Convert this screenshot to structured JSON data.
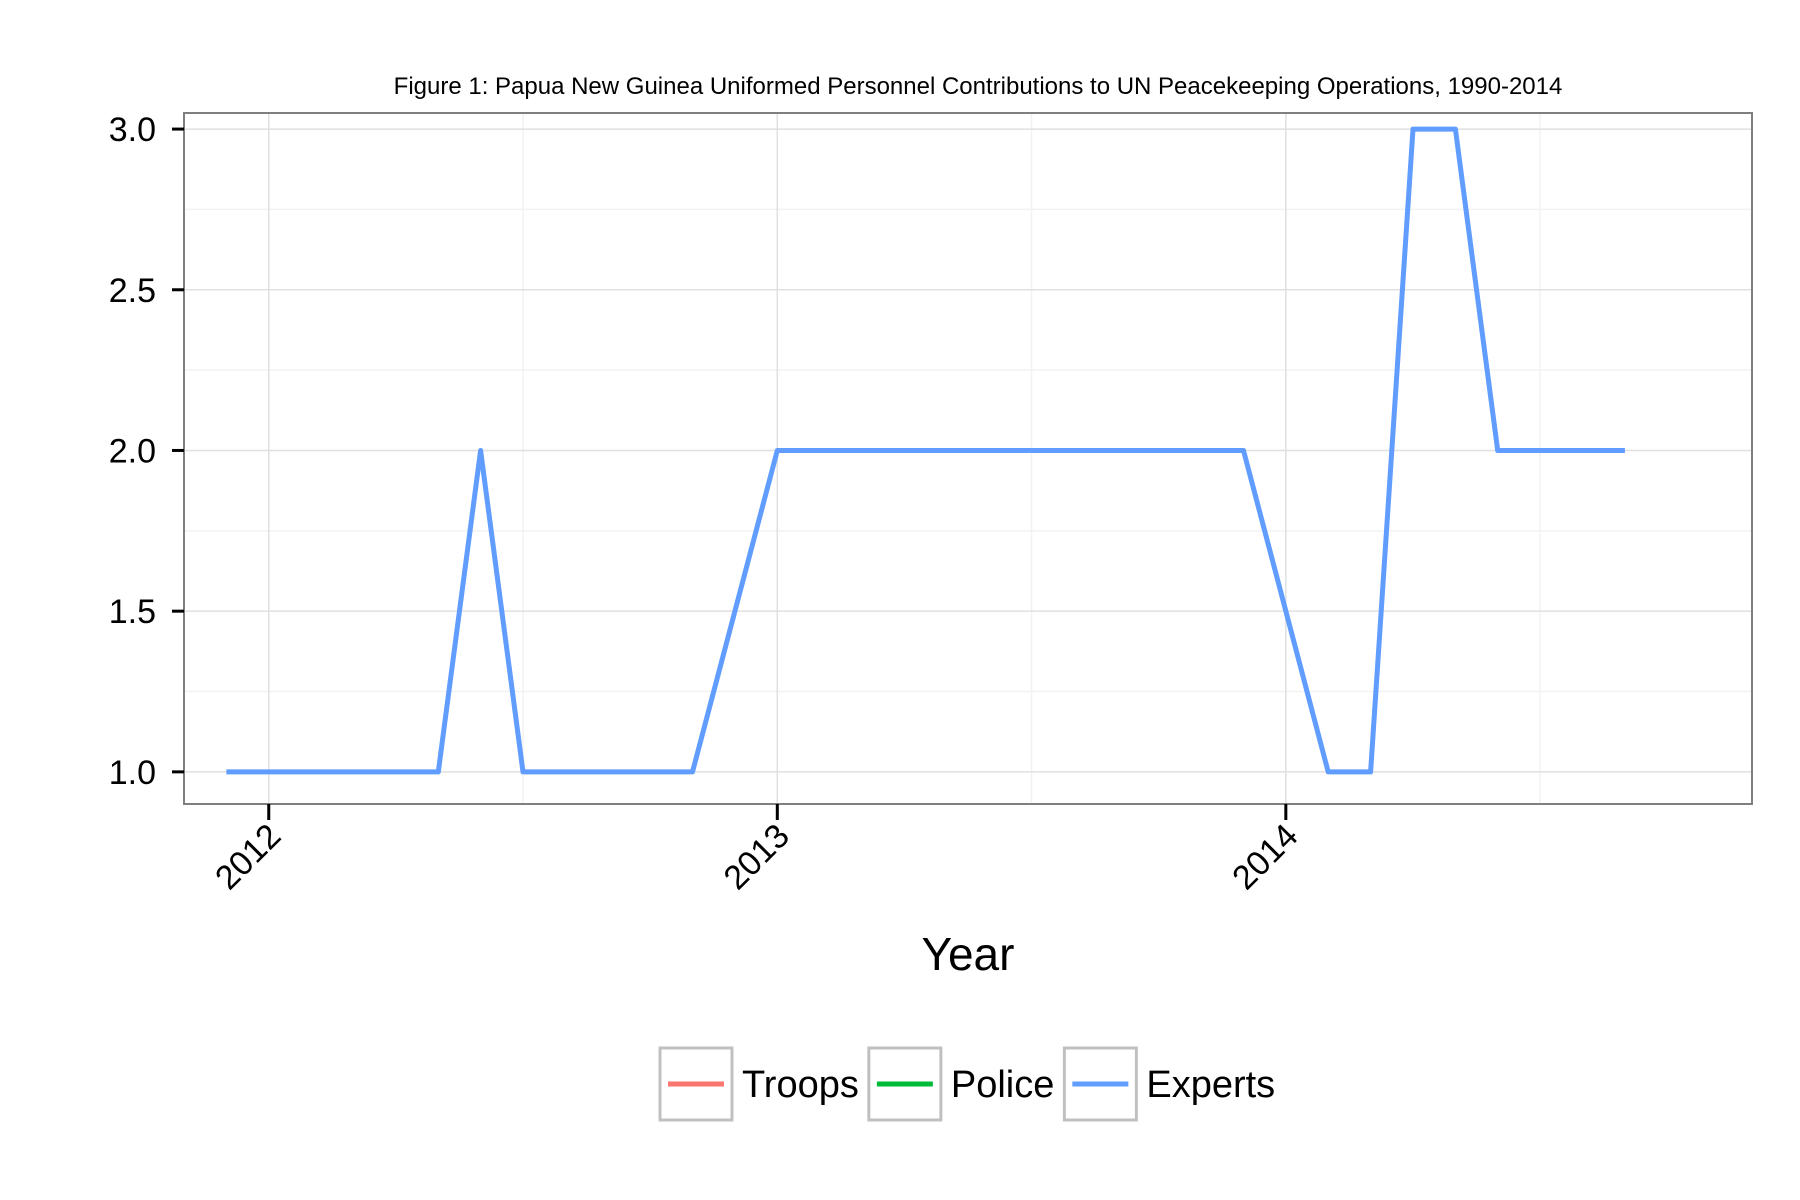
{
  "chart_data": {
    "type": "line",
    "title": "Figure 1: Papua New Guinea Uniformed Personnel Contributions to UN Peacekeeping Operations, 1990-2014",
    "xlabel": "Year",
    "ylabel": "",
    "xlim": [
      "2011-11-01",
      "2014-12-01"
    ],
    "ylim": [
      0.9,
      3.05
    ],
    "x_ticks": [
      "2012",
      "2013",
      "2014"
    ],
    "y_ticks": [
      "1.0",
      "1.5",
      "2.0",
      "2.5",
      "3.0"
    ],
    "grid": true,
    "legend_position": "bottom",
    "series": [
      {
        "name": "Troops",
        "color": "#F8766D",
        "points": []
      },
      {
        "name": "Police",
        "color": "#00BA38",
        "points": []
      },
      {
        "name": "Experts",
        "color": "#619CFF",
        "points": [
          {
            "x": "2011-12",
            "y": 1
          },
          {
            "x": "2012-01",
            "y": 1
          },
          {
            "x": "2012-02",
            "y": 1
          },
          {
            "x": "2012-03",
            "y": 1
          },
          {
            "x": "2012-04",
            "y": 1
          },
          {
            "x": "2012-05",
            "y": 1
          },
          {
            "x": "2012-06",
            "y": 2
          },
          {
            "x": "2012-07",
            "y": 1
          },
          {
            "x": "2012-08",
            "y": 1
          },
          {
            "x": "2012-09",
            "y": 1
          },
          {
            "x": "2012-10",
            "y": 1
          },
          {
            "x": "2012-11",
            "y": 1
          },
          {
            "x": "2013-01",
            "y": 2
          },
          {
            "x": "2013-02",
            "y": 2
          },
          {
            "x": "2013-03",
            "y": 2
          },
          {
            "x": "2013-04",
            "y": 2
          },
          {
            "x": "2013-05",
            "y": 2
          },
          {
            "x": "2013-06",
            "y": 2
          },
          {
            "x": "2013-07",
            "y": 2
          },
          {
            "x": "2013-08",
            "y": 2
          },
          {
            "x": "2013-09",
            "y": 2
          },
          {
            "x": "2013-10",
            "y": 2
          },
          {
            "x": "2013-11",
            "y": 2
          },
          {
            "x": "2013-12",
            "y": 2
          },
          {
            "x": "2014-02",
            "y": 1
          },
          {
            "x": "2014-03",
            "y": 1
          },
          {
            "x": "2014-04",
            "y": 3
          },
          {
            "x": "2014-05",
            "y": 3
          },
          {
            "x": "2014-06",
            "y": 2
          },
          {
            "x": "2014-07",
            "y": 2
          },
          {
            "x": "2014-08",
            "y": 2
          },
          {
            "x": "2014-09",
            "y": 2
          }
        ]
      }
    ]
  }
}
